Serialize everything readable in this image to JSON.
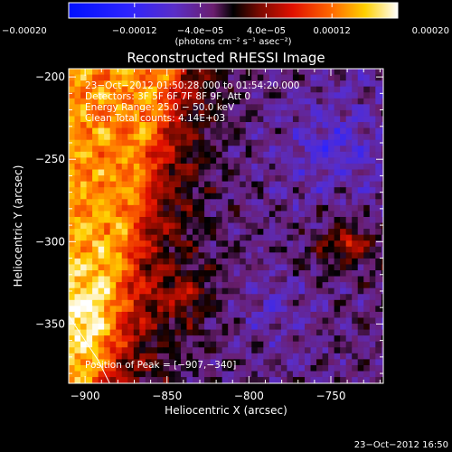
{
  "chart_data": {
    "type": "heatmap",
    "title": "Reconstructed RHESSI Image",
    "xlabel": "Heliocentric X (arcsec)",
    "ylabel": "Heliocentric Y (arcsec)",
    "xlim": [
      -910,
      -718
    ],
    "ylim": [
      -386,
      -195
    ],
    "xticks": [
      -900,
      -850,
      -800,
      -750
    ],
    "xtick_labels": [
      "−900",
      "−850",
      "−800",
      "−750"
    ],
    "yticks": [
      -200,
      -250,
      -300,
      -350
    ],
    "ytick_labels": [
      "−200",
      "−250",
      "−300",
      "−350"
    ],
    "colorbar": {
      "min": -0.0002,
      "max": 0.0002,
      "unit_label": "(photons cm⁻² s⁻¹ asec⁻²)",
      "tick_values": [
        -0.0002,
        -0.00012,
        -4e-05,
        4e-05,
        0.00012,
        0.0002
      ],
      "tick_labels": [
        "−0.00020",
        "−0.00012",
        "−4.0e−05",
        "4.0e−05",
        "0.00012",
        "0.00020"
      ]
    },
    "info_lines": [
      "23−Oct−2012 01:50:28.000 to 01:54:20.000",
      "Detectors: 3F 5F 6F 7F 8F 9F, Att 0",
      "Energy Range: 25.0 − 50.0 keV",
      "Clean     Total counts: 4.14E+03"
    ],
    "peak_label": "Position of Peak = [−907,−340]",
    "peak_position": [
      -907,
      -340
    ],
    "timestamp": "23−Oct−2012 16:50",
    "grid": false,
    "colormap": "blue-purple-red-yellow-white",
    "limb_arc": true
  }
}
